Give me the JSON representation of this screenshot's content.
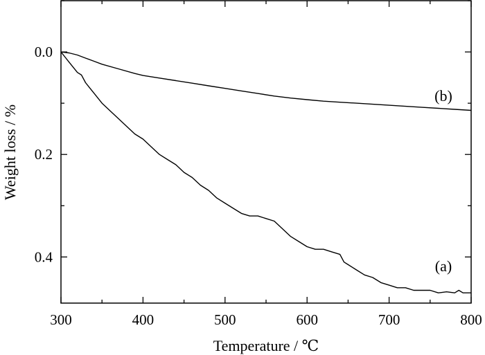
{
  "chart_data": {
    "type": "line",
    "title": "",
    "xlabel": "Temperature / ℃",
    "ylabel": "Weight loss / %",
    "xlim": [
      300,
      800
    ],
    "ylim": [
      0.49,
      -0.1
    ],
    "y_inverted": true,
    "grid": false,
    "x_ticks": [
      300,
      400,
      500,
      600,
      700,
      800
    ],
    "x_tick_labels": [
      "300",
      "400",
      "500",
      "600",
      "700",
      "800"
    ],
    "y_ticks": [
      0.0,
      0.2,
      0.4
    ],
    "y_tick_labels": [
      "0.0",
      "0.2",
      "0.4"
    ],
    "series": [
      {
        "name": "(a)",
        "x": [
          300,
          305,
          310,
          320,
          325,
          330,
          335,
          340,
          345,
          350,
          360,
          370,
          380,
          390,
          400,
          410,
          420,
          430,
          440,
          450,
          460,
          470,
          480,
          490,
          500,
          510,
          520,
          530,
          540,
          550,
          560,
          570,
          580,
          590,
          600,
          610,
          620,
          630,
          640,
          645,
          650,
          660,
          670,
          680,
          690,
          700,
          710,
          720,
          730,
          740,
          750,
          760,
          770,
          780,
          785,
          790,
          800
        ],
        "y": [
          0.0,
          0.01,
          0.02,
          0.04,
          0.045,
          0.06,
          0.07,
          0.08,
          0.09,
          0.1,
          0.115,
          0.13,
          0.145,
          0.16,
          0.17,
          0.185,
          0.2,
          0.21,
          0.22,
          0.235,
          0.245,
          0.26,
          0.27,
          0.285,
          0.295,
          0.305,
          0.315,
          0.32,
          0.32,
          0.325,
          0.33,
          0.345,
          0.36,
          0.37,
          0.38,
          0.385,
          0.385,
          0.39,
          0.395,
          0.41,
          0.415,
          0.425,
          0.435,
          0.44,
          0.45,
          0.455,
          0.46,
          0.46,
          0.465,
          0.465,
          0.465,
          0.47,
          0.468,
          0.47,
          0.465,
          0.47,
          0.47
        ]
      },
      {
        "name": "(b)",
        "x": [
          300,
          310,
          320,
          330,
          340,
          350,
          370,
          390,
          400,
          420,
          440,
          460,
          480,
          500,
          520,
          540,
          560,
          580,
          600,
          620,
          640,
          660,
          680,
          700,
          720,
          740,
          760,
          780,
          800
        ],
        "y": [
          0.0,
          0.002,
          0.006,
          0.012,
          0.018,
          0.024,
          0.033,
          0.042,
          0.046,
          0.051,
          0.056,
          0.061,
          0.066,
          0.071,
          0.076,
          0.081,
          0.086,
          0.09,
          0.093,
          0.096,
          0.098,
          0.1,
          0.102,
          0.104,
          0.106,
          0.108,
          0.11,
          0.112,
          0.114
        ]
      }
    ]
  }
}
